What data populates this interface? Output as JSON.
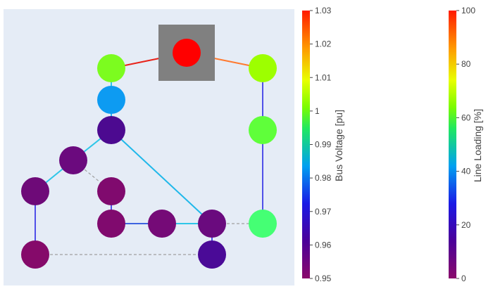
{
  "colors": {
    "plot_bg": "#e5ecf6",
    "ext_grid_box": "#808080",
    "dashed_line": "#a0a0a0"
  },
  "graph": {
    "external_grid": {
      "bus": "b_top",
      "voltage_pu": 1.03,
      "color": "#ff0000"
    },
    "buses": [
      {
        "id": "b_top",
        "voltage_pu": 1.03,
        "color": "#ff0000"
      },
      {
        "id": "b_l1",
        "voltage_pu": 0.998,
        "color": "#7cfc1f"
      },
      {
        "id": "b_r1",
        "voltage_pu": 1.0,
        "color": "#9dff00"
      },
      {
        "id": "b_l2",
        "voltage_pu": 0.978,
        "color": "#0d9bf2"
      },
      {
        "id": "b_l3",
        "voltage_pu": 0.957,
        "color": "#4c0a90"
      },
      {
        "id": "b_r2",
        "voltage_pu": 0.995,
        "color": "#5fff3a"
      },
      {
        "id": "b_m1",
        "voltage_pu": 0.952,
        "color": "#6b0a7e"
      },
      {
        "id": "b_m2",
        "voltage_pu": 0.951,
        "color": "#800a6e"
      },
      {
        "id": "b_ll",
        "voltage_pu": 0.952,
        "color": "#6e0a78"
      },
      {
        "id": "b_m3",
        "voltage_pu": 0.951,
        "color": "#800a6e"
      },
      {
        "id": "b_m4",
        "voltage_pu": 0.952,
        "color": "#750a77"
      },
      {
        "id": "b_m5",
        "voltage_pu": 0.953,
        "color": "#6a0a7e"
      },
      {
        "id": "b_r3",
        "voltage_pu": 0.993,
        "color": "#45ff74"
      },
      {
        "id": "b_ll2",
        "voltage_pu": 0.951,
        "color": "#850a6a"
      },
      {
        "id": "b_m6",
        "voltage_pu": 0.958,
        "color": "#4a0a97"
      }
    ],
    "lines": [
      {
        "from": "b_l1",
        "to": "b_top",
        "loading_pct": 100,
        "color": "#e8231a"
      },
      {
        "from": "b_top",
        "to": "b_r1",
        "loading_pct": 85,
        "color": "#ff7a30"
      },
      {
        "from": "b_l1",
        "to": "b_l2",
        "loading_pct": 45,
        "color": "#2ec6e8"
      },
      {
        "from": "b_l2",
        "to": "b_l3",
        "loading_pct": 40,
        "color": "#2ab0f0"
      },
      {
        "from": "b_l3",
        "to": "b_m1",
        "loading_pct": 45,
        "color": "#2ec6e8"
      },
      {
        "from": "b_l3",
        "to": "b_m5",
        "loading_pct": 42,
        "color": "#20b8ea"
      },
      {
        "from": "b_m1",
        "to": "b_ll",
        "loading_pct": 45,
        "color": "#2ec6e8"
      },
      {
        "from": "b_ll",
        "to": "b_ll2",
        "loading_pct": 20,
        "color": "#5050e8"
      },
      {
        "from": "b_m2",
        "to": "b_m3",
        "loading_pct": 20,
        "color": "#5050e8"
      },
      {
        "from": "b_m3",
        "to": "b_m4",
        "loading_pct": 25,
        "color": "#3f64e0"
      },
      {
        "from": "b_m4",
        "to": "b_m5",
        "loading_pct": 45,
        "color": "#2ec6e8"
      },
      {
        "from": "b_m5",
        "to": "b_m6",
        "loading_pct": 20,
        "color": "#5050e8"
      },
      {
        "from": "b_r1",
        "to": "b_r2",
        "loading_pct": 20,
        "color": "#5050e8"
      },
      {
        "from": "b_r2",
        "to": "b_r3",
        "loading_pct": 20,
        "color": "#5050e8"
      }
    ],
    "dashed_lines": [
      {
        "from": "b_m1",
        "to": "b_m2"
      },
      {
        "from": "b_m5",
        "to": "b_r3"
      },
      {
        "from": "b_ll2",
        "to": "b_m6"
      }
    ]
  },
  "colorbar_voltage": {
    "title": "Bus Voltage [pu]",
    "ticks": [
      "1.03",
      "1.02",
      "1.01",
      "1",
      "0.99",
      "0.98",
      "0.97",
      "0.96",
      "0.95"
    ],
    "range": [
      0.95,
      1.03
    ]
  },
  "colorbar_loading": {
    "title": "Line Loading [%]",
    "ticks": [
      "100",
      "80",
      "60",
      "40",
      "20",
      "0"
    ],
    "range": [
      0,
      100
    ]
  }
}
